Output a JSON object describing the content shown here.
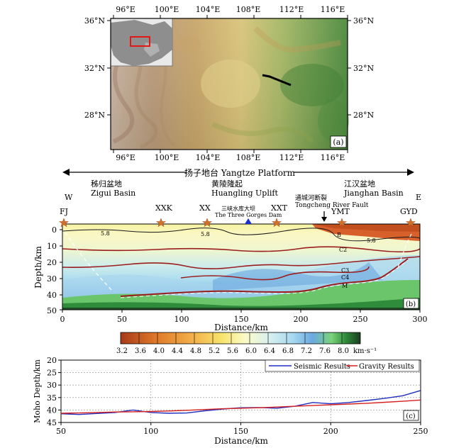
{
  "panel_a": {
    "top_lon_ticks": [
      "96°E",
      "100°E",
      "104°E",
      "108°E",
      "112°E",
      "116°E"
    ],
    "bottom_lon_ticks": [
      "96°E",
      "100°E",
      "104°E",
      "108°E",
      "112°E",
      "116°E"
    ],
    "left_lat_ticks": [
      "36°N",
      "32°N",
      "28°N"
    ],
    "right_lat_ticks": [
      "36°N",
      "32°N",
      "28°N"
    ],
    "label": "(a)"
  },
  "panel_b": {
    "platform_label": "扬子地台 Yangtze Platform",
    "zigui_cn": "秭归盆地",
    "zigui_en": "Zigui Basin",
    "huangling_cn": "黄陵隆起",
    "huangling_en": "Huangling Uplift",
    "jianghan_cn": "江汉盆地",
    "jianghan_en": "Jianghan Basin",
    "dir_west": "W",
    "dir_east": "E",
    "dam_cn": "三峡水库大坝",
    "dam_en": "The Three Gorges Dam",
    "fault_cn": "通城河断裂",
    "fault_en": "Tongcheng River Fault",
    "stations": [
      "FJ",
      "XXK",
      "XX",
      "XXT",
      "YMT",
      "GYD"
    ],
    "y_ticks": [
      "0",
      "10",
      "20",
      "30",
      "40",
      "50"
    ],
    "x_ticks": [
      "0",
      "50",
      "100",
      "150",
      "200",
      "250",
      "300"
    ],
    "ylabel": "Depth/km",
    "xlabel": "Distance/km",
    "layer_labels": [
      "5.8",
      "5.8",
      "5.8",
      "B",
      "C2",
      "C3",
      "C4",
      "M"
    ],
    "label": "(b)",
    "colorbar_ticks": [
      "3.2",
      "3.6",
      "4.0",
      "4.4",
      "4.8",
      "5.2",
      "5.6",
      "6.0",
      "6.4",
      "6.8",
      "7.2",
      "7.6",
      "8.0"
    ],
    "colorbar_unit": "km·s⁻¹"
  },
  "chart_data": {
    "type": "line",
    "x": [
      50,
      60,
      70,
      80,
      90,
      100,
      110,
      120,
      130,
      140,
      150,
      160,
      170,
      180,
      190,
      200,
      210,
      220,
      230,
      240,
      250
    ],
    "series": [
      {
        "name": "Seismic Results",
        "values": [
          41.5,
          41.8,
          41.4,
          41.0,
          40.0,
          41.0,
          41.3,
          41.2,
          40.3,
          39.6,
          39.1,
          39.0,
          39.3,
          38.5,
          37.0,
          37.5,
          37.0,
          36.2,
          35.3,
          34.3,
          32.2
        ]
      },
      {
        "name": "Gravity Results",
        "values": [
          41.3,
          41.2,
          41.0,
          40.8,
          40.7,
          40.6,
          40.4,
          40.1,
          39.8,
          39.5,
          39.3,
          39.1,
          38.8,
          38.5,
          38.2,
          37.9,
          37.6,
          37.3,
          36.9,
          36.5,
          36.0
        ]
      }
    ],
    "xlim": [
      50,
      250
    ],
    "ylim": [
      45,
      20
    ],
    "x_ticks": [
      50,
      100,
      150,
      200,
      250
    ],
    "y_ticks": [
      20,
      25,
      30,
      35,
      40,
      45
    ],
    "xlabel": "Distance/km",
    "ylabel": "Moho Depth/km",
    "legend_position": "top-right",
    "colors": {
      "Seismic Results": "#1f2fbf",
      "Gravity Results": "#d62020"
    },
    "grid": true,
    "panel_label": "(c)"
  }
}
